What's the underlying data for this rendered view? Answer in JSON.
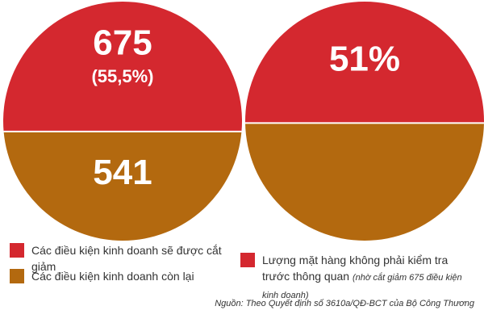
{
  "chart_data": [
    {
      "type": "pie",
      "categories": [
        "Các điều kiện kinh doanh sẽ được cắt giảm",
        "Các điều kiện kinh doanh còn lại"
      ],
      "values": [
        675,
        541
      ],
      "percents": [
        55.5,
        null
      ],
      "percent_labels": [
        "(55,5%)",
        null
      ],
      "colors": [
        "#d4282f",
        "#b3690f"
      ]
    },
    {
      "type": "pie",
      "categories": [
        "Lượng mặt hàng không phải kiểm tra trước thông quan",
        null
      ],
      "legend_note": "(nhờ cắt giảm 675 điều kiện kinh doanh)",
      "values": [
        51,
        49
      ],
      "value_labels": [
        "51%",
        null
      ],
      "colors": [
        "#d4282f",
        "#b3690f"
      ]
    }
  ],
  "source": "Nguồn: Theo Quyết định số 3610a/QĐ-BCT của Bộ Công Thương"
}
